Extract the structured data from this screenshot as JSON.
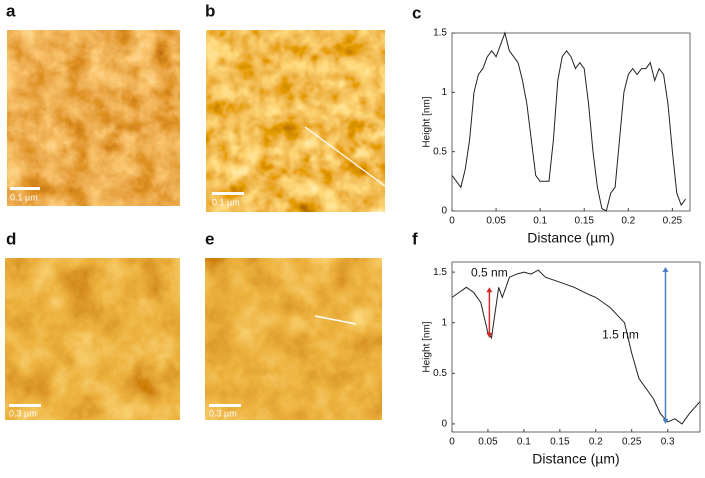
{
  "panel_labels": [
    "a",
    "b",
    "c",
    "d",
    "e",
    "f"
  ],
  "scale_bars": [
    "0.1 µm",
    "0.1 µm",
    "0.3 µm",
    "0.3 µm"
  ],
  "chart_data": [
    {
      "type": "line",
      "xlabel": "Distance (µm)",
      "ylabel": "Height [nm]",
      "x": [
        0,
        0.005,
        0.01,
        0.015,
        0.02,
        0.025,
        0.03,
        0.035,
        0.04,
        0.045,
        0.05,
        0.055,
        0.06,
        0.065,
        0.07,
        0.075,
        0.08,
        0.085,
        0.09,
        0.095,
        0.1,
        0.105,
        0.11,
        0.115,
        0.12,
        0.125,
        0.13,
        0.135,
        0.14,
        0.145,
        0.15,
        0.155,
        0.16,
        0.165,
        0.17,
        0.175,
        0.18,
        0.185,
        0.19,
        0.195,
        0.2,
        0.205,
        0.21,
        0.215,
        0.22,
        0.225,
        0.23,
        0.235,
        0.24,
        0.245,
        0.25,
        0.255,
        0.26,
        0.265
      ],
      "series": [
        {
          "color": "#222222",
          "values": [
            0.3,
            0.25,
            0.2,
            0.35,
            0.6,
            1.0,
            1.15,
            1.2,
            1.3,
            1.35,
            1.3,
            1.4,
            1.5,
            1.35,
            1.3,
            1.25,
            1.1,
            0.9,
            0.6,
            0.3,
            0.25,
            0.25,
            0.25,
            0.6,
            1.1,
            1.3,
            1.35,
            1.3,
            1.2,
            1.25,
            1.2,
            0.9,
            0.5,
            0.2,
            0.02,
            0.0,
            0.15,
            0.2,
            0.6,
            1.0,
            1.15,
            1.2,
            1.15,
            1.2,
            1.2,
            1.25,
            1.1,
            1.2,
            1.15,
            0.9,
            0.5,
            0.15,
            0.05,
            0.1
          ]
        }
      ],
      "xlim": [
        0,
        0.27
      ],
      "ylim": [
        0,
        1.5
      ],
      "xticks": [
        0,
        0.05,
        0.1,
        0.15,
        0.2,
        0.25
      ],
      "yticks": [
        0,
        0.5,
        1,
        1.5
      ]
    },
    {
      "type": "line",
      "xlabel": "Distance (µm)",
      "ylabel": "Height [nm]",
      "x": [
        0,
        0.01,
        0.02,
        0.03,
        0.04,
        0.045,
        0.05,
        0.055,
        0.06,
        0.065,
        0.07,
        0.08,
        0.09,
        0.1,
        0.11,
        0.12,
        0.13,
        0.15,
        0.17,
        0.19,
        0.2,
        0.22,
        0.24,
        0.25,
        0.26,
        0.27,
        0.28,
        0.29,
        0.3,
        0.31,
        0.32,
        0.33,
        0.345
      ],
      "series": [
        {
          "color": "#222222",
          "values": [
            1.25,
            1.3,
            1.35,
            1.3,
            1.2,
            1.05,
            0.9,
            0.85,
            1.1,
            1.35,
            1.25,
            1.45,
            1.48,
            1.5,
            1.48,
            1.52,
            1.45,
            1.4,
            1.35,
            1.28,
            1.25,
            1.15,
            1.0,
            0.7,
            0.45,
            0.35,
            0.25,
            0.1,
            0.02,
            0.05,
            0.0,
            0.1,
            0.22
          ]
        }
      ],
      "xlim": [
        0,
        0.345
      ],
      "ylim": [
        -0.08,
        1.6
      ],
      "xticks": [
        0,
        0.05,
        0.1,
        0.15,
        0.2,
        0.25,
        0.3
      ],
      "yticks": [
        0,
        0.5,
        1,
        1.5
      ],
      "annotations": [
        {
          "text": "0.5 nm",
          "x": 0.052,
          "y": [
            0.85,
            1.35
          ],
          "color": "#d62728"
        },
        {
          "text": "1.5 nm",
          "x": 0.297,
          "y": [
            0.0,
            1.55
          ],
          "color": "#4a7fc1"
        }
      ]
    }
  ]
}
